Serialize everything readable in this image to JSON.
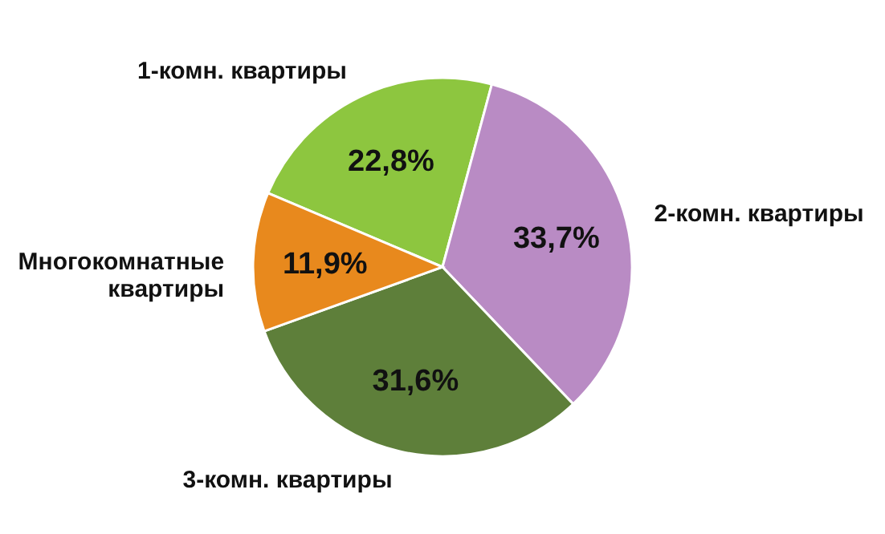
{
  "chart_data": {
    "type": "pie",
    "categories": [
      "1-комн. квартиры",
      "2-комн. квартиры",
      "3-комн. квартиры",
      "Многокомнатные\nквартиры"
    ],
    "values": [
      22.8,
      33.7,
      31.6,
      11.9
    ],
    "colors": [
      "#8dc63f",
      "#b98bc4",
      "#5e7f3a",
      "#e8891d"
    ],
    "value_labels": [
      "22,8%",
      "33,7%",
      "31,6%",
      "11,9%"
    ]
  }
}
